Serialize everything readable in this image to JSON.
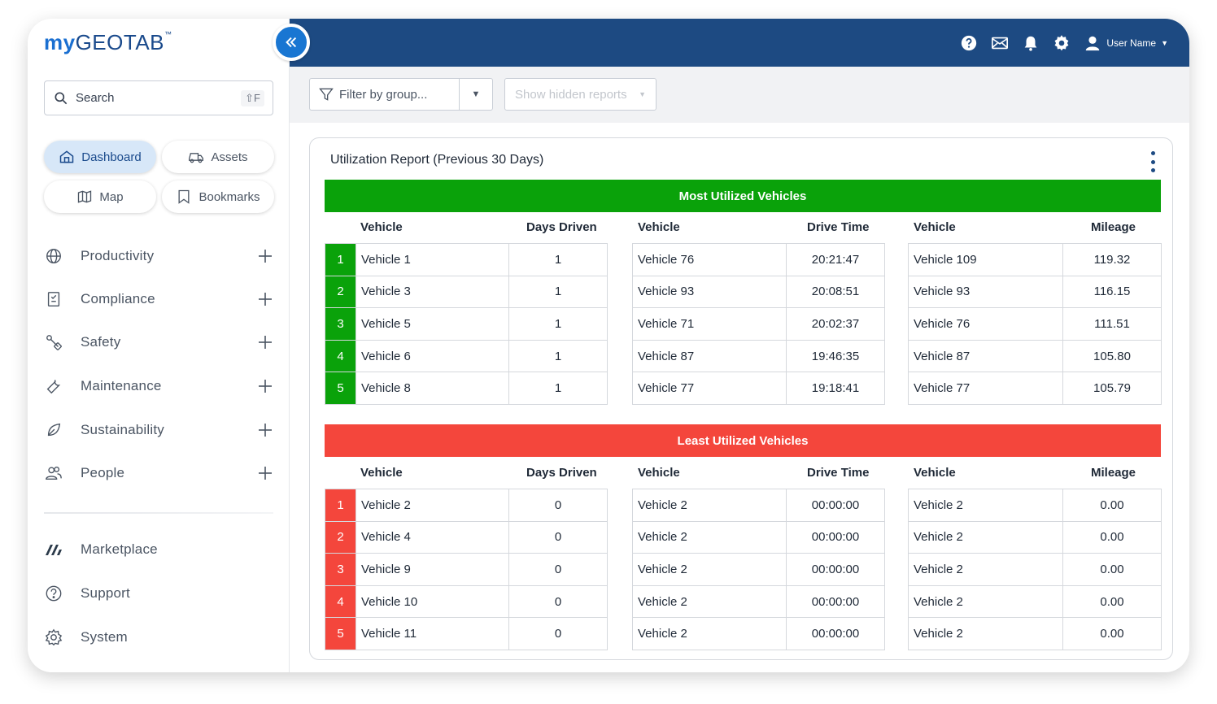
{
  "brand": {
    "logo_my": "my",
    "logo_rest": "GEOTAB",
    "logo_tm": "™"
  },
  "sidebar": {
    "search_placeholder": "Search",
    "search_shortcut": "⇧F",
    "quick_links": [
      {
        "label": "Dashboard",
        "icon": "home-icon",
        "active": true
      },
      {
        "label": "Assets",
        "icon": "truck-icon",
        "active": false
      },
      {
        "label": "Map",
        "icon": "map-icon",
        "active": false
      },
      {
        "label": "Bookmarks",
        "icon": "bookmark-icon",
        "active": false
      }
    ],
    "nav": [
      {
        "label": "Productivity",
        "icon": "globe-icon"
      },
      {
        "label": "Compliance",
        "icon": "clipboard-icon"
      },
      {
        "label": "Safety",
        "icon": "safety-icon"
      },
      {
        "label": "Maintenance",
        "icon": "wrench-icon"
      },
      {
        "label": "Sustainability",
        "icon": "leaf-icon"
      },
      {
        "label": "People",
        "icon": "people-icon"
      }
    ],
    "bottom_nav": [
      {
        "label": "Marketplace",
        "icon": "marketplace-icon"
      },
      {
        "label": "Support",
        "icon": "help-circle-icon"
      },
      {
        "label": "System",
        "icon": "gear-icon"
      }
    ]
  },
  "header": {
    "user_name": "User Name"
  },
  "toolbar": {
    "filter_placeholder": "Filter by group...",
    "hidden_reports_label": "Show hidden reports"
  },
  "report": {
    "title": "Utilization Report (Previous 30 Days)",
    "headers": {
      "vehicle": "Vehicle",
      "days_driven": "Days Driven",
      "drive_time": "Drive Time",
      "mileage": "Mileage"
    },
    "most": {
      "banner": "Most Utilized Vehicles",
      "color": "#0aa20a",
      "ranks": [
        "1",
        "2",
        "3",
        "4",
        "5"
      ],
      "days": [
        {
          "vehicle": "Vehicle 1",
          "value": "1"
        },
        {
          "vehicle": "Vehicle 3",
          "value": "1"
        },
        {
          "vehicle": "Vehicle 5",
          "value": "1"
        },
        {
          "vehicle": "Vehicle 6",
          "value": "1"
        },
        {
          "vehicle": "Vehicle 8",
          "value": "1"
        }
      ],
      "time": [
        {
          "vehicle": "Vehicle 76",
          "value": "20:21:47"
        },
        {
          "vehicle": "Vehicle 93",
          "value": "20:08:51"
        },
        {
          "vehicle": "Vehicle 71",
          "value": "20:02:37"
        },
        {
          "vehicle": "Vehicle 87",
          "value": "19:46:35"
        },
        {
          "vehicle": "Vehicle 77",
          "value": "19:18:41"
        }
      ],
      "mileage": [
        {
          "vehicle": "Vehicle 109",
          "value": "119.32"
        },
        {
          "vehicle": "Vehicle 93",
          "value": "116.15"
        },
        {
          "vehicle": "Vehicle 76",
          "value": "111.51"
        },
        {
          "vehicle": "Vehicle 87",
          "value": "105.80"
        },
        {
          "vehicle": "Vehicle 77",
          "value": "105.79"
        }
      ]
    },
    "least": {
      "banner": "Least Utilized Vehicles",
      "color": "#f4463c",
      "ranks": [
        "1",
        "2",
        "3",
        "4",
        "5"
      ],
      "days": [
        {
          "vehicle": "Vehicle 2",
          "value": "0"
        },
        {
          "vehicle": "Vehicle 4",
          "value": "0"
        },
        {
          "vehicle": "Vehicle 9",
          "value": "0"
        },
        {
          "vehicle": "Vehicle 10",
          "value": "0"
        },
        {
          "vehicle": "Vehicle 11",
          "value": "0"
        }
      ],
      "time": [
        {
          "vehicle": "Vehicle 2",
          "value": "00:00:00"
        },
        {
          "vehicle": "Vehicle 2",
          "value": "00:00:00"
        },
        {
          "vehicle": "Vehicle 2",
          "value": "00:00:00"
        },
        {
          "vehicle": "Vehicle 2",
          "value": "00:00:00"
        },
        {
          "vehicle": "Vehicle 2",
          "value": "00:00:00"
        }
      ],
      "mileage": [
        {
          "vehicle": "Vehicle 2",
          "value": "0.00"
        },
        {
          "vehicle": "Vehicle 2",
          "value": "0.00"
        },
        {
          "vehicle": "Vehicle 2",
          "value": "0.00"
        },
        {
          "vehicle": "Vehicle 2",
          "value": "0.00"
        },
        {
          "vehicle": "Vehicle 2",
          "value": "0.00"
        }
      ]
    }
  },
  "colors": {
    "header_blue": "#1d4a82",
    "accent_blue": "#1976d2",
    "active_pill": "#d7e7f8",
    "most_green": "#0aa20a",
    "least_red": "#f4463c"
  }
}
